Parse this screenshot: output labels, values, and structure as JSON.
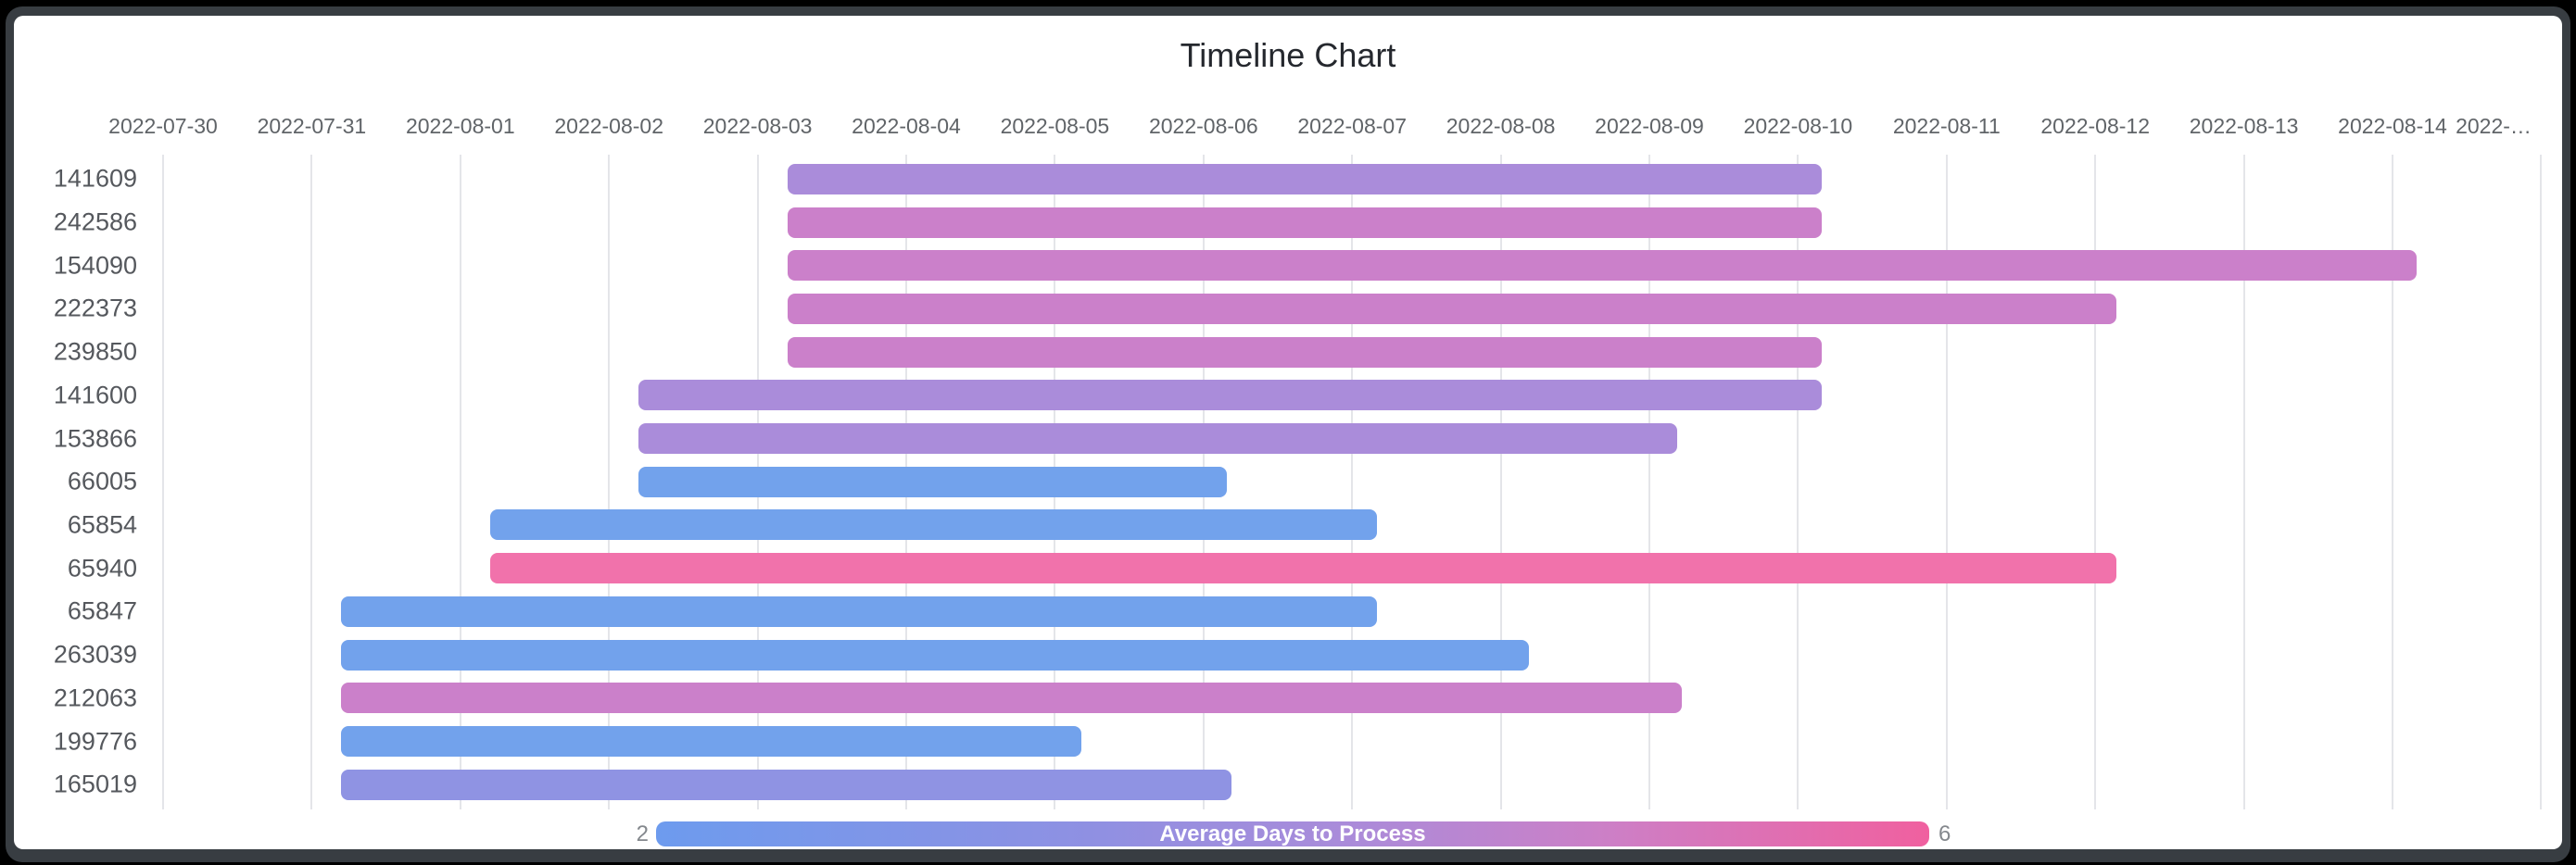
{
  "title": "Timeline Chart",
  "axis": {
    "tick_labels": [
      "2022-07-30",
      "2022-07-31",
      "2022-08-01",
      "2022-08-02",
      "2022-08-03",
      "2022-08-04",
      "2022-08-05",
      "2022-08-06",
      "2022-08-07",
      "2022-08-08",
      "2022-08-09",
      "2022-08-10",
      "2022-08-11",
      "2022-08-12",
      "2022-08-13",
      "2022-08-14",
      "2022-…"
    ]
  },
  "legend": {
    "label": "Average Days to Process",
    "min": "2",
    "max": "6",
    "gradient": [
      "#6d9bee",
      "#9090e2",
      "#ab8bd9",
      "#cd7fc6",
      "#f0609f"
    ]
  },
  "chart_data": {
    "type": "bar",
    "subtype": "timeline-gantt",
    "title": "Timeline Chart",
    "xlabel": "",
    "ylabel": "",
    "x_axis": {
      "unit": "date",
      "first_tick": "2022-07-30",
      "tick_interval_days": 1,
      "num_gridlines": 17,
      "grid": true
    },
    "legend": {
      "label": "Average Days to Process",
      "min": 2,
      "max": 6,
      "position": "bottom",
      "style": "gradient-colorbar"
    },
    "y_categories": [
      "141609",
      "242586",
      "154090",
      "222373",
      "239850",
      "141600",
      "153866",
      "66005",
      "65854",
      "65940",
      "65847",
      "263039",
      "212063",
      "199776",
      "165019"
    ],
    "rows": [
      {
        "id": "141609",
        "start_day": 4.2,
        "end_day": 11.16,
        "start_date": "2022-08-03",
        "end_date": "2022-08-10",
        "color": "#aa8cda"
      },
      {
        "id": "242586",
        "start_day": 4.2,
        "end_day": 11.16,
        "start_date": "2022-08-03",
        "end_date": "2022-08-10",
        "color": "#cb80ca"
      },
      {
        "id": "154090",
        "start_day": 4.2,
        "end_day": 15.16,
        "start_date": "2022-08-03",
        "end_date": "2022-08-14",
        "color": "#cb80ca"
      },
      {
        "id": "222373",
        "start_day": 4.2,
        "end_day": 13.14,
        "start_date": "2022-08-03",
        "end_date": "2022-08-12",
        "color": "#cb80ca"
      },
      {
        "id": "239850",
        "start_day": 4.2,
        "end_day": 11.16,
        "start_date": "2022-08-03",
        "end_date": "2022-08-10",
        "color": "#cb80ca"
      },
      {
        "id": "141600",
        "start_day": 3.2,
        "end_day": 11.16,
        "start_date": "2022-08-02",
        "end_date": "2022-08-10",
        "color": "#aa8cda"
      },
      {
        "id": "153866",
        "start_day": 3.2,
        "end_day": 10.19,
        "start_date": "2022-08-02",
        "end_date": "2022-08-09",
        "color": "#aa8cda"
      },
      {
        "id": "66005",
        "start_day": 3.2,
        "end_day": 7.16,
        "start_date": "2022-08-02",
        "end_date": "2022-08-06",
        "color": "#72a2ec"
      },
      {
        "id": "65854",
        "start_day": 2.2,
        "end_day": 8.17,
        "start_date": "2022-08-01",
        "end_date": "2022-08-07",
        "color": "#72a2ec"
      },
      {
        "id": "65940",
        "start_day": 2.2,
        "end_day": 13.14,
        "start_date": "2022-08-01",
        "end_date": "2022-08-12",
        "color": "#f172ab"
      },
      {
        "id": "65847",
        "start_day": 1.2,
        "end_day": 8.17,
        "start_date": "2022-07-31",
        "end_date": "2022-08-07",
        "color": "#72a2ec"
      },
      {
        "id": "263039",
        "start_day": 1.2,
        "end_day": 9.19,
        "start_date": "2022-07-31",
        "end_date": "2022-08-08",
        "color": "#72a2ec"
      },
      {
        "id": "212063",
        "start_day": 1.2,
        "end_day": 10.22,
        "start_date": "2022-07-31",
        "end_date": "2022-08-09",
        "color": "#cb80ca"
      },
      {
        "id": "199776",
        "start_day": 1.2,
        "end_day": 6.18,
        "start_date": "2022-07-31",
        "end_date": "2022-08-05",
        "color": "#72a2ec"
      },
      {
        "id": "165019",
        "start_day": 1.2,
        "end_day": 7.19,
        "start_date": "2022-07-31",
        "end_date": "2022-08-06",
        "color": "#8f93e3"
      }
    ]
  }
}
